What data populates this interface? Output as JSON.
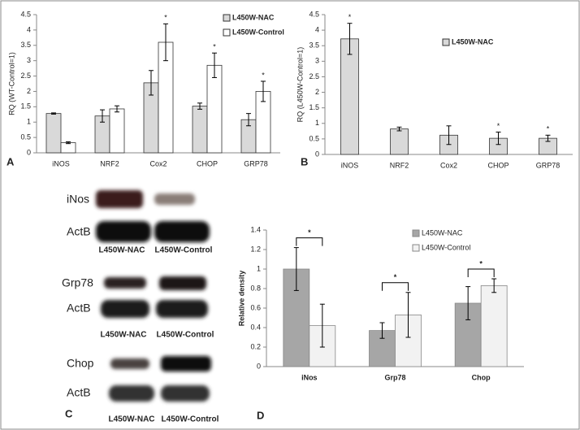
{
  "chart_data": [
    {
      "type": "bar",
      "panel": "A",
      "ylabel": "RQ (WT-Control=1)",
      "categories": [
        "iNOS",
        "NRF2",
        "Cox2",
        "CHOP",
        "GRP78"
      ],
      "series": [
        {
          "name": "L450W-NAC",
          "color": "#d9d9d9",
          "values": [
            1.28,
            1.2,
            2.28,
            1.52,
            1.08
          ],
          "errors": [
            0.02,
            0.2,
            0.4,
            0.1,
            0.2
          ],
          "annotations": [
            null,
            null,
            null,
            null,
            null
          ]
        },
        {
          "name": "L450W-Control",
          "color": "#ffffff",
          "values": [
            0.33,
            1.43,
            3.6,
            2.85,
            2.0
          ],
          "errors": [
            0.03,
            0.1,
            0.6,
            0.4,
            0.33
          ],
          "annotations": [
            null,
            null,
            "*",
            "*",
            "*"
          ]
        }
      ],
      "ylim": [
        0,
        4.5
      ],
      "yticks": [
        0,
        0.5,
        1,
        1.5,
        2,
        2.5,
        3,
        3.5,
        4,
        4.5
      ],
      "grid": false
    },
    {
      "type": "bar",
      "panel": "B",
      "ylabel": "RQ (L450W-Control=1)",
      "categories": [
        "iNOS",
        "NRF2",
        "Cox2",
        "CHOP",
        "GRP78"
      ],
      "series": [
        {
          "name": "L450W-NAC",
          "color": "#d9d9d9",
          "values": [
            3.72,
            0.82,
            0.62,
            0.52,
            0.52
          ],
          "errors": [
            0.5,
            0.06,
            0.3,
            0.2,
            0.1
          ],
          "annotations": [
            "*",
            null,
            null,
            "*",
            "*"
          ]
        }
      ],
      "ylim": [
        0,
        4.5
      ],
      "yticks": [
        0,
        0.5,
        1,
        1.5,
        2,
        2.5,
        3,
        3.5,
        4,
        4.5
      ],
      "grid": false
    },
    {
      "type": "bar",
      "panel": "D",
      "ylabel": "Relative density",
      "categories": [
        "iNos",
        "Grp78",
        "Chop"
      ],
      "series": [
        {
          "name": "L450W-NAC",
          "color": "#a6a6a6",
          "values": [
            1.0,
            0.37,
            0.65
          ],
          "errors": [
            0.22,
            0.08,
            0.17
          ]
        },
        {
          "name": "L450W-Control",
          "color": "#f2f2f2",
          "values": [
            0.42,
            0.53,
            0.83
          ],
          "errors": [
            0.22,
            0.23,
            0.07
          ]
        }
      ],
      "annotations": [
        "*",
        "*",
        "*"
      ],
      "ylim": [
        0,
        1.4
      ],
      "yticks": [
        0,
        0.2,
        0.4,
        0.6,
        0.8,
        1,
        1.2,
        1.4
      ],
      "grid": false
    }
  ],
  "blots": {
    "panel": "C",
    "groups": [
      {
        "target": "iNos",
        "loading": "ActB",
        "lanes": [
          "L450W-NAC",
          "L450W-Control"
        ]
      },
      {
        "target": "Grp78",
        "loading": "ActB",
        "lanes": [
          "L450W-NAC",
          "L450W-Control"
        ]
      },
      {
        "target": "Chop",
        "loading": "ActB",
        "lanes": [
          "L450W-NAC",
          "L450W-Control"
        ]
      }
    ]
  }
}
